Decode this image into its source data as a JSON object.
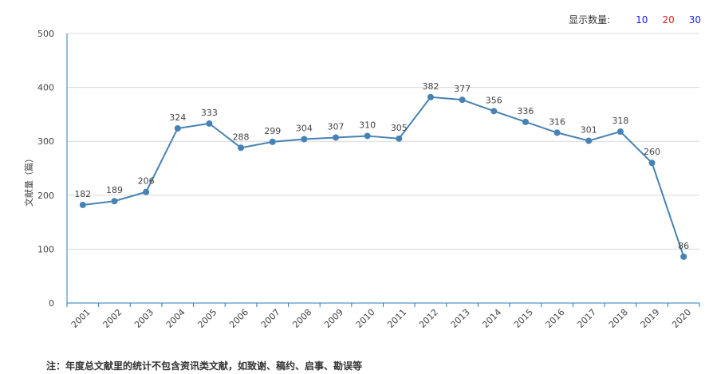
{
  "controls": {
    "count_label": "显示数量:",
    "options": [
      {
        "label": "10",
        "color": "#1a1aff"
      },
      {
        "label": "20",
        "color": "#e02020"
      },
      {
        "label": "30",
        "color": "#1a1aff"
      }
    ]
  },
  "footnote": "注：年度总文献里的统计不包含资讯类文献，如致谢、稿约、启事、勘误等",
  "chart_data": {
    "type": "line",
    "ylabel": "文献量（篇）",
    "ylim": [
      0,
      500
    ],
    "yticks": [
      0,
      100,
      200,
      300,
      400,
      500
    ],
    "grid": true,
    "line_color": "#4682b4",
    "x": [
      "2001",
      "2002",
      "2003",
      "2004",
      "2005",
      "2006",
      "2007",
      "2008",
      "2009",
      "2010",
      "2011",
      "2012",
      "2013",
      "2014",
      "2015",
      "2016",
      "2017",
      "2018",
      "2019",
      "2020"
    ],
    "values": [
      182,
      189,
      206,
      324,
      333,
      288,
      299,
      304,
      307,
      310,
      305,
      382,
      377,
      356,
      336,
      316,
      301,
      318,
      260,
      86
    ]
  }
}
